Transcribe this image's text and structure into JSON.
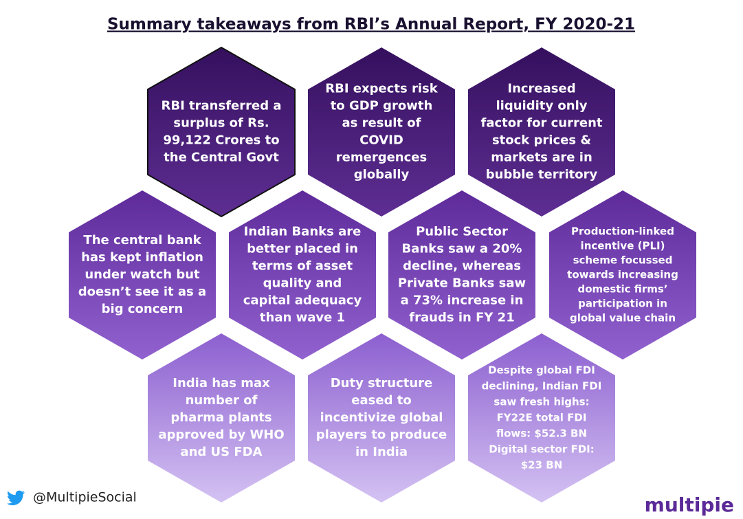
{
  "header": {
    "title": "Summary takeaways from RBI’s Annual Report, FY 2020-21"
  },
  "nodes": [
    {
      "lines": [
        "RBI transferred a",
        "surplus of Rs.",
        "99,122 Crores to",
        "the Central Govt"
      ]
    },
    {
      "lines": [
        "RBI  expects risk",
        "to GDP growth",
        "as result of",
        "COVID",
        "remergences",
        "globally"
      ]
    },
    {
      "lines": [
        "Increased",
        "liquidity only",
        "factor for current",
        "stock prices &",
        "markets are in",
        "bubble territory"
      ]
    },
    {
      "lines": [
        "The central bank",
        "has kept inflation",
        "under watch but",
        "doesn’t see it as a",
        "big concern"
      ]
    },
    {
      "lines": [
        "Indian Banks are",
        "better placed in",
        "terms of asset",
        "quality and",
        "capital adequacy",
        "than wave 1"
      ]
    },
    {
      "lines": [
        "Public Sector",
        "Banks saw a 20%",
        "decline, whereas",
        "Private Banks saw",
        "a 73% increase in",
        "frauds in FY 21"
      ]
    },
    {
      "lines": [
        "Production-linked",
        "incentive (PLI)",
        "scheme focussed",
        "towards increasing",
        "domestic firms’",
        "participation in",
        "global value chain"
      ]
    },
    {
      "lines": [
        "India has max",
        "number of",
        "pharma plants",
        "approved by WHO",
        "and US FDA"
      ]
    },
    {
      "lines": [
        "Duty structure",
        "eased to",
        "incentivize global",
        "players to produce",
        "in India"
      ]
    },
    {
      "lines": [
        "Despite global FDI",
        "declining, Indian FDI",
        "saw fresh highs:",
        "FY22E total FDI",
        "flows: $52.3 BN",
        "Digital sector FDI:",
        "$23 BN"
      ]
    }
  ],
  "footer": {
    "handle": "@MultipieSocial",
    "logo": "multipie"
  }
}
